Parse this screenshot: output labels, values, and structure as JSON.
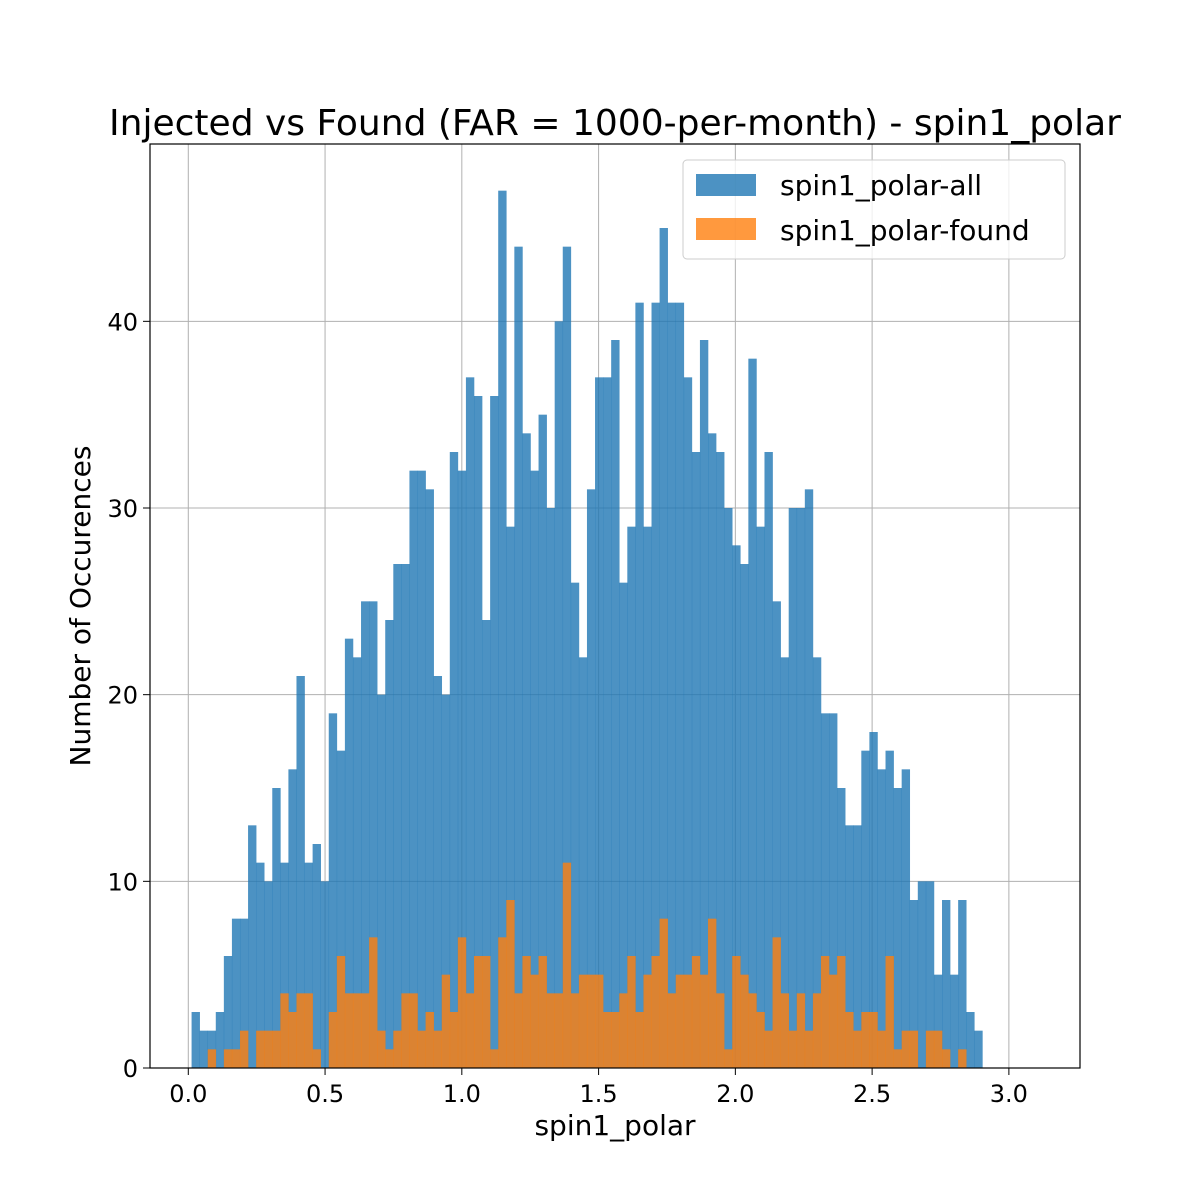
{
  "chart_data": {
    "type": "bar",
    "title": "Injected vs Found (FAR = 1000-per-month) - spin1_polar",
    "xlabel": "spin1_polar",
    "ylabel": "Number of Occurences",
    "xlim": [
      -0.14,
      3.26
    ],
    "ylim": [
      0,
      49.5
    ],
    "xticks": [
      "0.0",
      "0.5",
      "1.0",
      "1.5",
      "2.0",
      "2.5",
      "3.0"
    ],
    "yticks": [
      "0",
      "10",
      "20",
      "30",
      "40"
    ],
    "grid": true,
    "legend_position": "top-right",
    "bin_start": 0.012,
    "bin_width": 0.0295,
    "series": [
      {
        "name": "spin1_polar-all",
        "color": "#1f77b4",
        "values": [
          3,
          2,
          2,
          3,
          6,
          8,
          8,
          13,
          11,
          10,
          15,
          11,
          16,
          21,
          11,
          12,
          10,
          19,
          17,
          23,
          22,
          25,
          25,
          20,
          24,
          27,
          27,
          32,
          32,
          31,
          21,
          20,
          33,
          32,
          37,
          36,
          24,
          36,
          47,
          29,
          44,
          34,
          32,
          35,
          30,
          40,
          44,
          26,
          22,
          31,
          37,
          37,
          39,
          26,
          29,
          41,
          29,
          41,
          45,
          41,
          41,
          37,
          33,
          39,
          34,
          33,
          30,
          28,
          27,
          38,
          29,
          33,
          25,
          22,
          30,
          30,
          31,
          22,
          19,
          19,
          15,
          13,
          13,
          17,
          18,
          16,
          17,
          15,
          16,
          9,
          10,
          10,
          5,
          9,
          5,
          9,
          3,
          2
        ]
      },
      {
        "name": "spin1_polar-found",
        "color": "#ff7f0e",
        "values": [
          0,
          0,
          1,
          0,
          1,
          1,
          2,
          0,
          2,
          2,
          2,
          4,
          3,
          4,
          4,
          1,
          0,
          3,
          6,
          4,
          4,
          4,
          7,
          2,
          1,
          2,
          4,
          4,
          2,
          3,
          2,
          5,
          3,
          7,
          4,
          6,
          6,
          1,
          7,
          9,
          4,
          6,
          5,
          6,
          4,
          4,
          11,
          4,
          5,
          5,
          5,
          3,
          3,
          4,
          6,
          3,
          5,
          6,
          8,
          4,
          5,
          5,
          6,
          5,
          8,
          4,
          1,
          6,
          5,
          4,
          3,
          2,
          7,
          4,
          2,
          4,
          2,
          4,
          6,
          5,
          6,
          3,
          2,
          3,
          3,
          2,
          6,
          1,
          2,
          2,
          0,
          2,
          2,
          1,
          0,
          1,
          0,
          0
        ]
      }
    ]
  }
}
